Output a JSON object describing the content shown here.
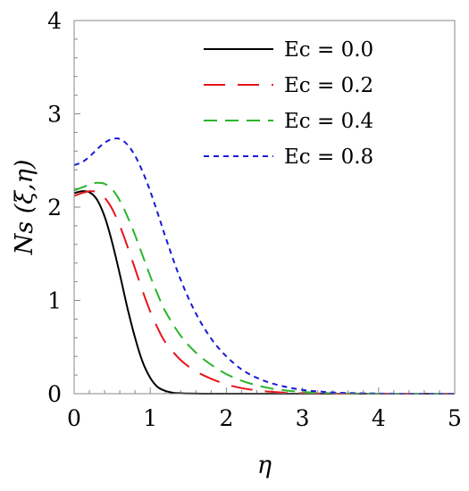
{
  "chart_data": {
    "type": "line",
    "xlabel": "η",
    "ylabel": "Ns (ξ,η)",
    "xlim": [
      0,
      5
    ],
    "ylim": [
      0,
      4
    ],
    "xticks": [
      "0",
      "1",
      "2",
      "3",
      "4",
      "5"
    ],
    "yticks": [
      "0",
      "1",
      "2",
      "3",
      "4"
    ],
    "grid": false,
    "legend_position": "top-right",
    "series": [
      {
        "name": "Ec = 0.0",
        "color": "#000000",
        "dash": "solid",
        "x": [
          0,
          0.1,
          0.2,
          0.3,
          0.4,
          0.5,
          0.6,
          0.7,
          0.8,
          0.9,
          1.0,
          1.1,
          1.2,
          1.3,
          1.4,
          1.5,
          1.7,
          2.0,
          2.5,
          3.0,
          4.0,
          5.0
        ],
        "y": [
          2.15,
          2.17,
          2.16,
          2.08,
          1.9,
          1.62,
          1.28,
          0.92,
          0.6,
          0.34,
          0.17,
          0.07,
          0.03,
          0.01,
          0.005,
          0.002,
          0.0,
          0.0,
          0.0,
          0.0,
          0.0,
          0.0
        ]
      },
      {
        "name": "Ec = 0.2",
        "color": "#e8141b",
        "dash": "long",
        "x": [
          0,
          0.1,
          0.2,
          0.3,
          0.4,
          0.5,
          0.6,
          0.7,
          0.8,
          0.9,
          1.0,
          1.1,
          1.2,
          1.4,
          1.6,
          1.8,
          2.0,
          2.2,
          2.4,
          2.6,
          2.8,
          3.0,
          3.5,
          4.0,
          5.0
        ],
        "y": [
          2.12,
          2.15,
          2.17,
          2.16,
          2.1,
          1.98,
          1.8,
          1.58,
          1.34,
          1.1,
          0.88,
          0.7,
          0.55,
          0.36,
          0.24,
          0.16,
          0.1,
          0.06,
          0.035,
          0.02,
          0.01,
          0.005,
          0.0,
          0.0,
          0.0
        ]
      },
      {
        "name": "Ec = 0.4",
        "color": "#2ab52a",
        "dash": "medium",
        "x": [
          0,
          0.1,
          0.2,
          0.3,
          0.4,
          0.5,
          0.6,
          0.7,
          0.8,
          0.9,
          1.0,
          1.1,
          1.2,
          1.4,
          1.6,
          1.8,
          2.0,
          2.2,
          2.4,
          2.6,
          2.8,
          3.0,
          3.2,
          3.5,
          4.0,
          5.0
        ],
        "y": [
          2.18,
          2.21,
          2.24,
          2.26,
          2.25,
          2.19,
          2.07,
          1.9,
          1.7,
          1.48,
          1.26,
          1.06,
          0.88,
          0.62,
          0.44,
          0.31,
          0.21,
          0.14,
          0.09,
          0.055,
          0.033,
          0.02,
          0.01,
          0.003,
          0.0,
          0.0
        ]
      },
      {
        "name": "Ec = 0.8",
        "color": "#1a1ad6",
        "dash": "short",
        "x": [
          0,
          0.1,
          0.2,
          0.3,
          0.4,
          0.5,
          0.6,
          0.7,
          0.8,
          0.9,
          1.0,
          1.1,
          1.2,
          1.4,
          1.6,
          1.8,
          2.0,
          2.2,
          2.4,
          2.6,
          2.8,
          3.0,
          3.2,
          3.5,
          4.0,
          4.5,
          5.0
        ],
        "y": [
          2.45,
          2.48,
          2.54,
          2.62,
          2.69,
          2.73,
          2.73,
          2.67,
          2.55,
          2.38,
          2.17,
          1.93,
          1.68,
          1.22,
          0.86,
          0.59,
          0.4,
          0.26,
          0.17,
          0.11,
          0.07,
          0.04,
          0.025,
          0.01,
          0.002,
          0.0,
          0.0
        ]
      }
    ]
  }
}
